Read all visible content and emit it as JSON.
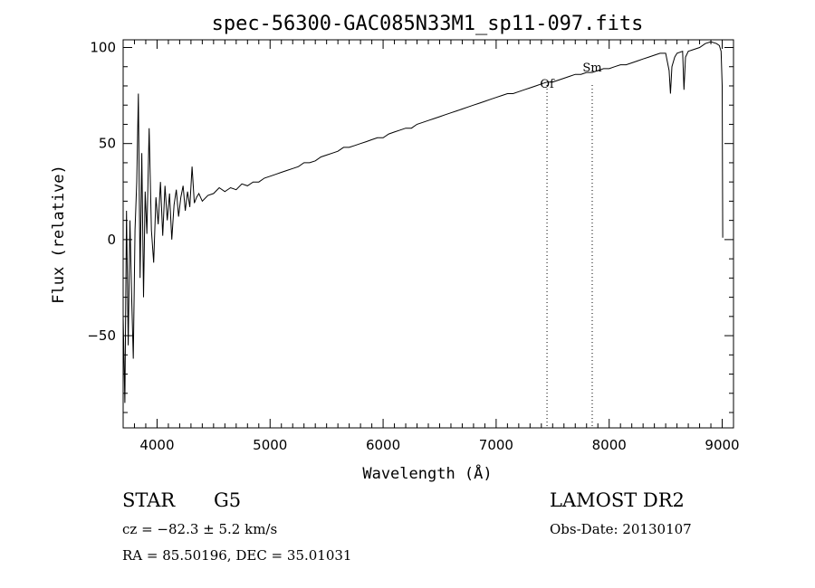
{
  "chart_data": {
    "type": "line",
    "title": "spec-56300-GAC085N33M1_sp11-097.fits",
    "xlabel": "Wavelength (Å)",
    "ylabel": "Flux (relative)",
    "xlim": [
      3700,
      9100
    ],
    "ylim": [
      -98,
      104
    ],
    "x_ticks": [
      4000,
      5000,
      6000,
      7000,
      8000,
      9000
    ],
    "x_tick_labels": [
      "4000",
      "5000",
      "6000",
      "7000",
      "8000",
      "9000"
    ],
    "y_ticks": [
      -50,
      0,
      50,
      100
    ],
    "y_tick_labels": [
      "−50",
      "0",
      "50",
      "100"
    ],
    "grid": false,
    "series": [
      {
        "x": [
          3700,
          3715,
          3730,
          3745,
          3760,
          3775,
          3790,
          3805,
          3820,
          3835,
          3850,
          3865,
          3880,
          3895,
          3910,
          3930,
          3950,
          3970,
          3990,
          4010,
          4030,
          4050,
          4070,
          4090,
          4110,
          4130,
          4150,
          4170,
          4190,
          4210,
          4230,
          4250,
          4270,
          4290,
          4310,
          4330,
          4350,
          4370,
          4400,
          4450,
          4500,
          4550,
          4600,
          4650,
          4700,
          4750,
          4800,
          4850,
          4900,
          4950,
          5000,
          5050,
          5100,
          5150,
          5200,
          5250,
          5300,
          5350,
          5400,
          5450,
          5500,
          5550,
          5600,
          5650,
          5700,
          5750,
          5800,
          5850,
          5900,
          5950,
          6000,
          6050,
          6100,
          6150,
          6200,
          6250,
          6300,
          6350,
          6400,
          6450,
          6500,
          6550,
          6600,
          6650,
          6700,
          6750,
          6800,
          6850,
          6900,
          6950,
          7000,
          7050,
          7100,
          7150,
          7200,
          7250,
          7300,
          7350,
          7400,
          7450,
          7500,
          7550,
          7600,
          7650,
          7700,
          7750,
          7800,
          7850,
          7900,
          7950,
          8000,
          8050,
          8100,
          8150,
          8200,
          8250,
          8300,
          8350,
          8400,
          8450,
          8500,
          8530,
          8542,
          8555,
          8580,
          8600,
          8650,
          8662,
          8675,
          8700,
          8750,
          8800,
          8850,
          8900,
          8950,
          8975,
          8990,
          9000,
          9005
        ],
        "y": [
          -40,
          -85,
          15,
          -55,
          10,
          -30,
          -62,
          5,
          30,
          76,
          -20,
          45,
          -30,
          25,
          3,
          58,
          5,
          -12,
          22,
          8,
          30,
          2,
          28,
          10,
          24,
          0,
          18,
          26,
          12,
          22,
          28,
          15,
          25,
          17,
          38,
          19,
          22,
          24,
          20,
          23,
          24,
          27,
          25,
          27,
          26,
          29,
          28,
          30,
          30,
          32,
          33,
          34,
          35,
          36,
          37,
          38,
          40,
          40,
          41,
          43,
          44,
          45,
          46,
          48,
          48,
          49,
          50,
          51,
          52,
          53,
          53,
          55,
          56,
          57,
          58,
          58,
          60,
          61,
          62,
          63,
          64,
          65,
          66,
          67,
          68,
          69,
          70,
          71,
          72,
          73,
          74,
          75,
          76,
          76,
          77,
          78,
          79,
          80,
          81,
          82,
          82,
          83,
          84,
          85,
          86,
          86,
          87,
          87,
          88,
          89,
          89,
          90,
          91,
          91,
          92,
          93,
          94,
          95,
          96,
          97,
          97,
          88,
          76,
          90,
          95,
          97,
          98,
          78,
          95,
          98,
          99,
          100,
          102,
          103,
          102,
          101,
          98,
          80,
          1
        ]
      }
    ],
    "vlines": [
      {
        "x": 7450,
        "label": "Of"
      },
      {
        "x": 7850,
        "label": "Sm"
      }
    ]
  },
  "info": {
    "object_class": "STAR",
    "subclass": "G5",
    "survey": "LAMOST DR2",
    "cz": "cz = −82.3 ± 5.2 km/s",
    "obs_date": "Obs-Date: 20130107",
    "coords": "RA =  85.50196, DEC =  35.01031"
  }
}
